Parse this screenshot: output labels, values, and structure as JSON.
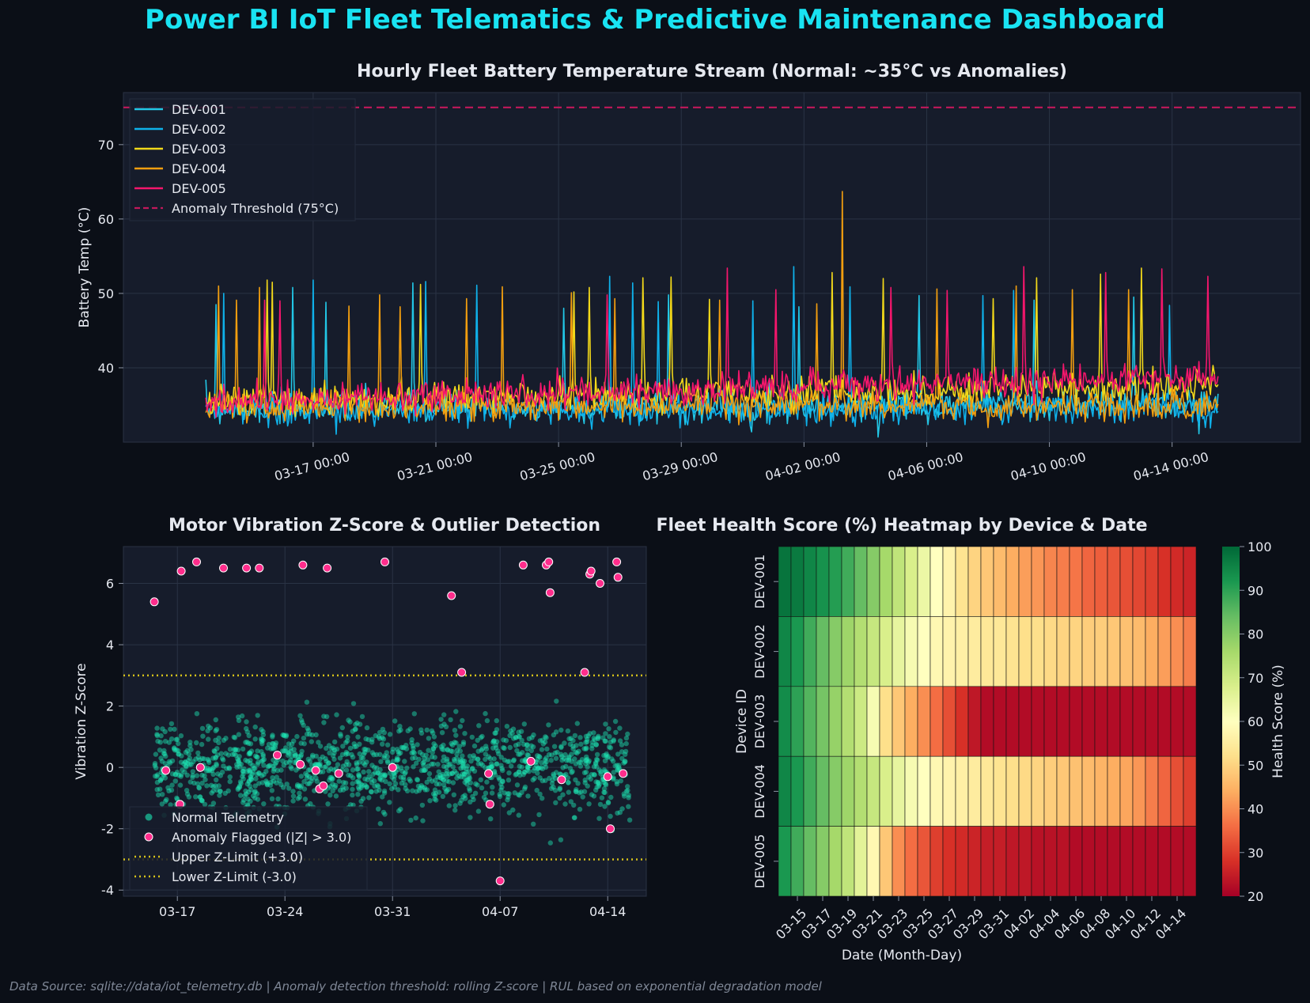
{
  "title": "Power BI IoT Fleet Telematics & Predictive Maintenance Dashboard",
  "footer": "Data Source: sqlite://data/iot_telemetry.db | Anomaly detection threshold: rolling Z-score | RUL based on exponential degradation model",
  "colors": {
    "background": "#0b0f17",
    "panel": "#161c2b",
    "title": "#19e3f2",
    "DEV-001": "#22c7e6",
    "DEV-002": "#0fb1ea",
    "DEV-003": "#f2d81a",
    "DEV-004": "#f29e0f",
    "DEV-005": "#f4166c",
    "threshold": "#c2185b",
    "normal_points": "#1de9b6",
    "anomaly_points": "#ff2d8c",
    "z_limits": "#d6c21a"
  },
  "chart_data": [
    {
      "type": "line",
      "title": "Hourly Fleet Battery Temperature Stream (Normal: ~35°C vs Anomalies)",
      "ylabel": "Battery Temp (°C)",
      "xlabel": "",
      "x_start": "2024-03-13 12:00",
      "x_end": "2024-04-15 12:00",
      "x_ticks": [
        "03-17 00:00",
        "03-21 00:00",
        "03-25 00:00",
        "03-29 00:00",
        "04-02 00:00",
        "04-06 00:00",
        "04-10 00:00",
        "04-14 00:00"
      ],
      "ylim": [
        30,
        77
      ],
      "yticks": [
        40,
        50,
        60,
        70
      ],
      "threshold": 75,
      "grid": true,
      "legend_position": "top-left",
      "series": [
        {
          "name": "DEV-001",
          "baseline": [
            34.5,
            35.2
          ],
          "spikes": [
            [
              "03-13 20:00",
              48.5
            ],
            [
              "03-16 08:00",
              50.8
            ],
            [
              "03-17 10:00",
              48.8
            ],
            [
              "03-20 06:00",
              51.4
            ],
            [
              "03-25 04:00",
              48.0
            ],
            [
              "03-28 14:00",
              49.8
            ],
            [
              "04-01 20:00",
              48.2
            ],
            [
              "04-05 18:00",
              49.7
            ],
            [
              "04-09 12:00",
              49.1
            ],
            [
              "04-12 18:00",
              49.5
            ]
          ]
        },
        {
          "name": "DEV-002",
          "baseline": [
            34.2,
            34.6
          ],
          "spikes": [
            [
              "03-14 02:00",
              50.0
            ],
            [
              "03-17 00:00",
              51.8
            ],
            [
              "03-20 16:00",
              51.6
            ],
            [
              "03-22 08:00",
              51.1
            ],
            [
              "03-26 16:00",
              52.3
            ],
            [
              "03-27 10:00",
              51.4
            ],
            [
              "03-28 06:00",
              48.9
            ],
            [
              "03-31 08:00",
              49.0
            ],
            [
              "04-01 16:00",
              53.6
            ],
            [
              "04-03 12:00",
              50.9
            ],
            [
              "04-07 20:00",
              49.7
            ],
            [
              "04-08 20:00",
              50.4
            ],
            [
              "04-13 22:00",
              48.4
            ]
          ]
        },
        {
          "name": "DEV-003",
          "baseline": [
            35.5,
            37.5
          ],
          "spikes": [
            [
              "03-15 12:00",
              51.8
            ],
            [
              "03-15 16:00",
              51.5
            ],
            [
              "03-20 12:00",
              51.2
            ],
            [
              "03-25 12:00",
              50.2
            ],
            [
              "03-26 00:00",
              50.8
            ],
            [
              "03-27 18:00",
              52.1
            ],
            [
              "03-28 16:00",
              52.2
            ],
            [
              "03-29 22:00",
              49.2
            ],
            [
              "04-02 22:00",
              52.8
            ],
            [
              "04-04 14:00",
              52.0
            ],
            [
              "04-08 04:00",
              49.3
            ],
            [
              "04-09 14:00",
              52.1
            ],
            [
              "04-11 16:00",
              52.6
            ],
            [
              "04-13 00:00",
              53.4
            ],
            [
              "04-15 08:00",
              40.3
            ]
          ]
        },
        {
          "name": "DEV-004",
          "baseline": [
            34.8,
            35.0
          ],
          "spikes": [
            [
              "03-13 22:00",
              51.0
            ],
            [
              "03-14 12:00",
              49.1
            ],
            [
              "03-15 06:00",
              50.8
            ],
            [
              "03-18 04:00",
              48.3
            ],
            [
              "03-19 04:00",
              49.8
            ],
            [
              "03-19 20:00",
              48.2
            ],
            [
              "03-22 00:00",
              49.3
            ],
            [
              "03-23 04:00",
              50.9
            ],
            [
              "03-25 10:00",
              50.1
            ],
            [
              "03-26 20:00",
              49.3
            ],
            [
              "03-30 06:00",
              49.1
            ],
            [
              "04-02 10:00",
              48.6
            ],
            [
              "04-03 06:00",
              63.7
            ],
            [
              "04-06 08:00",
              50.6
            ],
            [
              "04-08 22:00",
              51.0
            ],
            [
              "04-10 18:00",
              50.5
            ],
            [
              "04-12 14:00",
              50.5
            ]
          ]
        },
        {
          "name": "DEV-005",
          "baseline": [
            35.5,
            38.8
          ],
          "spikes": [
            [
              "03-15 10:00",
              49.1
            ],
            [
              "03-15 22:00",
              49.0
            ],
            [
              "03-26 14:00",
              49.8
            ],
            [
              "03-30 12:00",
              53.4
            ],
            [
              "04-01 02:00",
              50.5
            ],
            [
              "04-04 20:00",
              50.8
            ],
            [
              "04-06 16:00",
              50.4
            ],
            [
              "04-09 04:00",
              53.6
            ],
            [
              "04-11 20:00",
              52.8
            ],
            [
              "04-13 16:00",
              53.3
            ],
            [
              "04-15 04:00",
              52.3
            ]
          ]
        }
      ],
      "threshold_label": "Anomaly Threshold (75°C)"
    },
    {
      "type": "scatter",
      "title": "Motor Vibration Z-Score & Outlier Detection",
      "ylabel": "Vibration Z-Score",
      "xlabel": "",
      "x_start": "2024-03-14",
      "x_end": "2024-04-16",
      "x_ticks": [
        "03-17",
        "03-24",
        "03-31",
        "04-07",
        "04-14"
      ],
      "ylim": [
        -4.2,
        7.2
      ],
      "yticks": [
        -4,
        -2,
        0,
        2,
        4,
        6
      ],
      "upper_limit": 3.0,
      "lower_limit": -3.0,
      "grid": true,
      "legend_position": "lower-left",
      "legend": [
        "Normal Telemetry",
        "Anomaly Flagged (|Z| > 3.0)",
        "Upper Z-Limit (+3.0)",
        "Lower Z-Limit (-3.0)"
      ],
      "normal_points": 1400,
      "anomalies": [
        [
          "03-15 12:00",
          5.4
        ],
        [
          "03-17 06:00",
          6.4
        ],
        [
          "03-18 06:00",
          6.7
        ],
        [
          "03-20 00:00",
          6.5
        ],
        [
          "03-21 12:00",
          6.5
        ],
        [
          "03-22 08:00",
          6.5
        ],
        [
          "03-25 04:00",
          6.6
        ],
        [
          "03-26 18:00",
          6.5
        ],
        [
          "03-30 12:00",
          6.7
        ],
        [
          "04-03 20:00",
          5.6
        ],
        [
          "04-08 12:00",
          6.6
        ],
        [
          "04-10 00:00",
          6.6
        ],
        [
          "04-10 04:00",
          6.7
        ],
        [
          "04-10 06:00",
          5.7
        ],
        [
          "04-12 20:00",
          6.3
        ],
        [
          "04-12 22:00",
          6.4
        ],
        [
          "04-13 12:00",
          6.0
        ],
        [
          "04-14 14:00",
          6.7
        ],
        [
          "04-14 16:00",
          6.2
        ],
        [
          "04-04 12:00",
          3.1
        ],
        [
          "04-12 12:00",
          3.1
        ],
        [
          "04-07 00:00",
          -3.7
        ],
        [
          "04-14 04:00",
          -2.0
        ],
        [
          "04-14 00:00",
          -0.3
        ],
        [
          "04-15 00:00",
          -0.2
        ],
        [
          "04-11 00:00",
          -0.4
        ],
        [
          "04-09 00:00",
          0.2
        ],
        [
          "04-06 06:00",
          -0.2
        ],
        [
          "04-06 08:00",
          -1.2
        ],
        [
          "03-31 00:00",
          0.0
        ],
        [
          "03-26 00:00",
          -0.1
        ],
        [
          "03-26 06:00",
          -0.7
        ],
        [
          "03-26 12:00",
          -0.6
        ],
        [
          "03-27 12:00",
          -0.2
        ],
        [
          "03-23 12:00",
          0.4
        ],
        [
          "03-25 00:00",
          0.1
        ],
        [
          "03-18 12:00",
          0.0
        ],
        [
          "03-16 06:00",
          -0.1
        ],
        [
          "03-17 04:00",
          -1.2
        ]
      ]
    },
    {
      "type": "heatmap",
      "title": "Fleet Health Score (%) Heatmap by Device & Date",
      "xlabel": "Date (Month-Day)",
      "ylabel": "Device ID",
      "colorbar_label": "Health Score (%)",
      "colorbar_range": [
        20,
        100
      ],
      "colorbar_ticks": [
        20,
        30,
        40,
        50,
        60,
        70,
        80,
        90,
        100
      ],
      "rows": [
        "DEV-001",
        "DEV-002",
        "DEV-003",
        "DEV-004",
        "DEV-005"
      ],
      "columns": [
        "03-14",
        "03-15",
        "03-16",
        "03-17",
        "03-18",
        "03-19",
        "03-20",
        "03-21",
        "03-22",
        "03-23",
        "03-24",
        "03-25",
        "03-26",
        "03-27",
        "03-28",
        "03-29",
        "03-30",
        "03-31",
        "04-01",
        "04-02",
        "04-03",
        "04-04",
        "04-05",
        "04-06",
        "04-07",
        "04-08",
        "04-09",
        "04-10",
        "04-11",
        "04-12",
        "04-13",
        "04-14",
        "04-15"
      ],
      "x_tick_labels": [
        "03-15",
        "03-17",
        "03-19",
        "03-21",
        "03-23",
        "03-25",
        "03-27",
        "03-29",
        "03-31",
        "04-02",
        "04-04",
        "04-06",
        "04-08",
        "04-10",
        "04-12",
        "04-14"
      ],
      "values": [
        [
          98,
          97,
          95,
          93,
          91,
          88,
          84,
          80,
          76,
          72,
          68,
          64,
          60,
          57,
          53,
          50,
          48,
          46,
          44,
          42,
          41,
          39,
          38,
          37,
          35,
          34,
          33,
          32,
          31,
          30,
          28,
          27,
          26
        ],
        [
          95,
          92,
          88,
          84,
          80,
          77,
          74,
          71,
          68,
          65,
          62,
          60,
          58,
          57,
          56,
          55,
          54,
          54,
          53,
          52,
          52,
          51,
          50,
          50,
          49,
          49,
          48,
          47,
          46,
          44,
          42,
          40,
          38
        ],
        [
          94,
          90,
          86,
          82,
          78,
          74,
          70,
          62,
          52,
          48,
          44,
          40,
          36,
          32,
          28,
          24,
          22,
          22,
          22,
          22,
          22,
          22,
          22,
          22,
          22,
          22,
          22,
          22,
          22,
          22,
          22,
          22,
          22
        ],
        [
          95,
          92,
          88,
          84,
          80,
          77,
          74,
          71,
          68,
          65,
          62,
          60,
          58,
          57,
          56,
          55,
          54,
          53,
          52,
          51,
          50,
          49,
          48,
          47,
          46,
          45,
          44,
          43,
          41,
          38,
          35,
          32,
          30
        ],
        [
          92,
          88,
          84,
          80,
          76,
          72,
          66,
          58,
          48,
          40,
          36,
          33,
          30,
          28,
          27,
          26,
          25,
          25,
          24,
          24,
          23,
          23,
          23,
          22,
          22,
          22,
          22,
          22,
          22,
          22,
          22,
          22,
          22
        ]
      ]
    }
  ]
}
